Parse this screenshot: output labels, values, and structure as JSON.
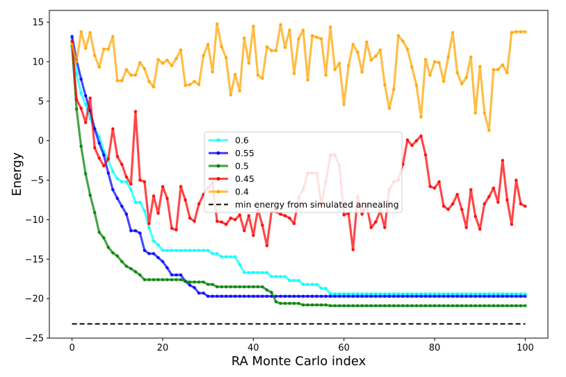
{
  "chart_data": {
    "type": "line",
    "title": "",
    "xlabel": "RA Monte Carlo index",
    "ylabel": "Energy",
    "xlim": [
      -5,
      105
    ],
    "ylim": [
      -25,
      16.5
    ],
    "xticks": [
      0,
      20,
      40,
      60,
      80,
      100
    ],
    "xtick_labels": [
      "0",
      "20",
      "40",
      "60",
      "80",
      "100"
    ],
    "yticks": [
      -25,
      -20,
      -15,
      -10,
      -5,
      0,
      5,
      10,
      15
    ],
    "ytick_labels": [
      "−25",
      "−20",
      "−15",
      "−10",
      "−5",
      "0",
      "5",
      "10",
      "15"
    ],
    "grid": false,
    "legend_position": "center",
    "series": [
      {
        "name": "0.6",
        "color": "#00ffff",
        "marker": "circle",
        "x": [
          0,
          1,
          2,
          3,
          4,
          5,
          6,
          7,
          8,
          9,
          10,
          11,
          12,
          13,
          14,
          15,
          16,
          17,
          18,
          19,
          20,
          21,
          22,
          23,
          24,
          25,
          26,
          27,
          28,
          29,
          30,
          31,
          32,
          33,
          34,
          35,
          36,
          37,
          38,
          39,
          40,
          41,
          42,
          43,
          44,
          45,
          46,
          47,
          48,
          49,
          50,
          51,
          52,
          53,
          54,
          55,
          56,
          57,
          58,
          59,
          60,
          61,
          62,
          63,
          64,
          65,
          66,
          67,
          68,
          69,
          70,
          71,
          72,
          73,
          74,
          75,
          76,
          77,
          78,
          79,
          80,
          81,
          82,
          83,
          84,
          85,
          86,
          87,
          88,
          89,
          90,
          91,
          92,
          93,
          94,
          95,
          96,
          97,
          98,
          99,
          100
        ],
        "values": [
          13.0,
          8.5,
          6.0,
          4.6,
          2.8,
          1.5,
          0.5,
          -1.3,
          -2.5,
          -3.9,
          -4.8,
          -5.2,
          -5.2,
          -6.2,
          -7.8,
          -7.8,
          -8.9,
          -11.0,
          -12.7,
          -13.2,
          -13.9,
          -13.9,
          -13.9,
          -13.9,
          -13.9,
          -13.9,
          -13.9,
          -13.9,
          -13.9,
          -13.9,
          -13.9,
          -14.3,
          -14.3,
          -14.7,
          -14.7,
          -14.7,
          -14.7,
          -15.7,
          -16.7,
          -16.7,
          -16.7,
          -16.7,
          -16.7,
          -16.7,
          -17.2,
          -17.2,
          -17.2,
          -17.2,
          -17.7,
          -17.7,
          -17.7,
          -18.2,
          -18.2,
          -18.2,
          -18.2,
          -18.7,
          -18.7,
          -19.4,
          -19.4,
          -19.4,
          -19.4,
          -19.4,
          -19.4,
          -19.4,
          -19.4,
          -19.4,
          -19.4,
          -19.4,
          -19.4,
          -19.4,
          -19.4,
          -19.4,
          -19.4,
          -19.4,
          -19.4,
          -19.4,
          -19.4,
          -19.4,
          -19.4,
          -19.4,
          -19.4,
          -19.4,
          -19.4,
          -19.4,
          -19.4,
          -19.4,
          -19.4,
          -19.4,
          -19.4,
          -19.4,
          -19.4,
          -19.4,
          -19.4,
          -19.4,
          -19.4,
          -19.4,
          -19.4,
          -19.4,
          -19.4,
          -19.4,
          -19.4
        ]
      },
      {
        "name": "0.55",
        "color": "#0000ff",
        "marker": "circle",
        "x": [
          0,
          1,
          2,
          3,
          4,
          5,
          6,
          7,
          8,
          9,
          10,
          11,
          12,
          13,
          14,
          15,
          16,
          17,
          18,
          19,
          20,
          21,
          22,
          23,
          24,
          25,
          26,
          27,
          28,
          29,
          30,
          31,
          32,
          33,
          34,
          35,
          36,
          37,
          38,
          39,
          40,
          41,
          42,
          43,
          44,
          45,
          46,
          47,
          48,
          49,
          50,
          51,
          52,
          53,
          54,
          55,
          56,
          57,
          58,
          59,
          60,
          61,
          62,
          63,
          64,
          65,
          66,
          67,
          68,
          69,
          70,
          71,
          72,
          73,
          74,
          75,
          76,
          77,
          78,
          79,
          80,
          81,
          82,
          83,
          84,
          85,
          86,
          87,
          88,
          89,
          90,
          91,
          92,
          93,
          94,
          95,
          96,
          97,
          98,
          99,
          100
        ],
        "values": [
          13.2,
          10.2,
          7.8,
          5.7,
          3.8,
          1.5,
          -0.3,
          -1.8,
          -4.1,
          -6.2,
          -7.3,
          -8.3,
          -9.3,
          -11.4,
          -11.4,
          -11.7,
          -13.9,
          -14.3,
          -14.3,
          -14.8,
          -15.3,
          -16.1,
          -17.0,
          -17.0,
          -17.0,
          -17.8,
          -18.3,
          -18.6,
          -19.3,
          -19.3,
          -19.7,
          -19.7,
          -19.7,
          -19.7,
          -19.7,
          -19.7,
          -19.7,
          -19.7,
          -19.7,
          -19.7,
          -19.7,
          -19.7,
          -19.7,
          -19.7,
          -19.7,
          -19.7,
          -19.7,
          -19.7,
          -19.7,
          -19.7,
          -19.7,
          -19.7,
          -19.7,
          -19.7,
          -19.7,
          -19.7,
          -19.7,
          -19.7,
          -19.7,
          -19.7,
          -19.7,
          -19.7,
          -19.7,
          -19.7,
          -19.7,
          -19.7,
          -19.7,
          -19.7,
          -19.7,
          -19.7,
          -19.7,
          -19.7,
          -19.7,
          -19.7,
          -19.7,
          -19.7,
          -19.7,
          -19.7,
          -19.7,
          -19.7,
          -19.7,
          -19.7,
          -19.7,
          -19.7,
          -19.7,
          -19.7,
          -19.7,
          -19.7,
          -19.7,
          -19.7,
          -19.7,
          -19.7,
          -19.7,
          -19.7,
          -19.7,
          -19.7,
          -19.7,
          -19.7,
          -19.7,
          -19.7,
          -19.7
        ]
      },
      {
        "name": "0.5",
        "color": "#008000",
        "marker": "circle",
        "x": [
          0,
          1,
          2,
          3,
          4,
          5,
          6,
          7,
          8,
          9,
          10,
          11,
          12,
          13,
          14,
          15,
          16,
          17,
          18,
          19,
          20,
          21,
          22,
          23,
          24,
          25,
          26,
          27,
          28,
          29,
          30,
          31,
          32,
          33,
          34,
          35,
          36,
          37,
          38,
          39,
          40,
          41,
          42,
          43,
          44,
          45,
          46,
          47,
          48,
          49,
          50,
          51,
          52,
          53,
          54,
          55,
          56,
          57,
          58,
          59,
          60,
          61,
          62,
          63,
          64,
          65,
          66,
          67,
          68,
          69,
          70,
          71,
          72,
          73,
          74,
          75,
          76,
          77,
          78,
          79,
          80,
          81,
          82,
          83,
          84,
          85,
          86,
          87,
          88,
          89,
          90,
          91,
          92,
          93,
          94,
          95,
          96,
          97,
          98,
          99,
          100
        ],
        "values": [
          12.0,
          4.0,
          -0.7,
          -4.2,
          -6.9,
          -9.1,
          -11.6,
          -12.3,
          -13.5,
          -14.2,
          -14.6,
          -15.3,
          -15.9,
          -16.2,
          -16.6,
          -17.0,
          -17.6,
          -17.6,
          -17.6,
          -17.6,
          -17.6,
          -17.6,
          -17.6,
          -17.6,
          -17.6,
          -17.8,
          -17.9,
          -17.9,
          -17.9,
          -17.9,
          -18.2,
          -18.2,
          -18.5,
          -18.5,
          -18.5,
          -18.5,
          -18.5,
          -18.5,
          -18.5,
          -18.5,
          -18.5,
          -18.5,
          -18.5,
          -18.9,
          -19.2,
          -20.4,
          -20.6,
          -20.6,
          -20.6,
          -20.6,
          -20.6,
          -20.8,
          -20.8,
          -20.8,
          -20.8,
          -20.8,
          -20.8,
          -20.9,
          -20.9,
          -20.9,
          -20.9,
          -20.9,
          -20.9,
          -20.9,
          -20.9,
          -20.9,
          -20.9,
          -20.9,
          -20.9,
          -20.9,
          -20.9,
          -20.9,
          -20.9,
          -20.9,
          -20.9,
          -20.9,
          -20.9,
          -20.9,
          -20.9,
          -20.9,
          -20.9,
          -20.9,
          -20.9,
          -20.9,
          -20.9,
          -20.9,
          -20.9,
          -20.9,
          -20.9,
          -20.9,
          -20.9,
          -20.9,
          -20.9,
          -20.9,
          -20.9,
          -20.9,
          -20.9,
          -20.9,
          -20.9,
          -20.9,
          -20.9
        ]
      },
      {
        "name": "0.45",
        "color": "#ff0000",
        "marker": "circle",
        "x": [
          0,
          1,
          2,
          3,
          4,
          5,
          6,
          7,
          8,
          9,
          10,
          11,
          12,
          13,
          14,
          15,
          16,
          17,
          18,
          19,
          20,
          21,
          22,
          23,
          24,
          25,
          26,
          27,
          28,
          29,
          30,
          31,
          32,
          33,
          34,
          35,
          36,
          37,
          38,
          39,
          40,
          41,
          42,
          43,
          44,
          45,
          46,
          47,
          48,
          49,
          50,
          51,
          52,
          53,
          54,
          55,
          56,
          57,
          58,
          59,
          60,
          61,
          62,
          63,
          64,
          65,
          66,
          67,
          68,
          69,
          70,
          71,
          72,
          73,
          74,
          75,
          76,
          77,
          78,
          79,
          80,
          81,
          82,
          83,
          84,
          85,
          86,
          87,
          88,
          89,
          90,
          91,
          92,
          93,
          94,
          95,
          96,
          97,
          98,
          99,
          100
        ],
        "values": [
          12.6,
          5.2,
          4.1,
          2.3,
          5.4,
          -0.9,
          -2.2,
          -3.2,
          -2.3,
          1.5,
          -2.0,
          -3.0,
          -4.6,
          -5.5,
          3.7,
          -5.0,
          -5.2,
          -10.5,
          -7.0,
          -9.2,
          -5.8,
          -7.3,
          -11.1,
          -11.3,
          -5.8,
          -7.5,
          -9.8,
          -10.2,
          -8.0,
          -6.8,
          -6.0,
          -5.3,
          -10.2,
          -10.3,
          -10.6,
          -9.8,
          -10.0,
          -9.4,
          -11.4,
          -9.5,
          -12.0,
          -8.7,
          -10.7,
          -13.3,
          -9.0,
          -9.0,
          -9.3,
          -9.5,
          -9.8,
          -10.5,
          -7.2,
          -6.2,
          -4.1,
          -4.1,
          -4.1,
          -8.1,
          -5.2,
          -1.8,
          -1.8,
          -3.2,
          -9.4,
          -9.2,
          -13.8,
          -7.1,
          -9.3,
          -8.1,
          -11.0,
          -10.3,
          -8.9,
          -11.0,
          -6.2,
          -5.2,
          -5.0,
          -3.0,
          0.1,
          -0.6,
          0.0,
          0.6,
          -1.8,
          -5.8,
          -6.0,
          -5.2,
          -8.3,
          -8.7,
          -8.0,
          -6.8,
          -8.7,
          -11.0,
          -6.2,
          -9.6,
          -11.2,
          -8.0,
          -7.1,
          -6.0,
          -7.8,
          -2.5,
          -7.5,
          -10.6,
          -5.0,
          -8.0,
          -8.3
        ]
      },
      {
        "name": "0.4",
        "color": "#ffa500",
        "marker": "circle",
        "x": [
          0,
          1,
          2,
          3,
          4,
          5,
          6,
          7,
          8,
          9,
          10,
          11,
          12,
          13,
          14,
          15,
          16,
          17,
          18,
          19,
          20,
          21,
          22,
          23,
          24,
          25,
          26,
          27,
          28,
          29,
          30,
          31,
          32,
          33,
          34,
          35,
          36,
          37,
          38,
          39,
          40,
          41,
          42,
          43,
          44,
          45,
          46,
          47,
          48,
          49,
          50,
          51,
          52,
          53,
          54,
          55,
          56,
          57,
          58,
          59,
          60,
          61,
          62,
          63,
          64,
          65,
          66,
          67,
          68,
          69,
          70,
          71,
          72,
          73,
          74,
          75,
          76,
          77,
          78,
          79,
          80,
          81,
          82,
          83,
          84,
          85,
          86,
          87,
          88,
          89,
          90,
          91,
          92,
          93,
          94,
          95,
          96,
          97,
          98,
          99,
          100
        ],
        "values": [
          12.2,
          10.0,
          13.8,
          11.7,
          13.7,
          10.8,
          9.3,
          11.6,
          11.6,
          13.2,
          7.6,
          7.6,
          9.0,
          8.3,
          8.3,
          9.9,
          9.1,
          7.5,
          6.8,
          10.3,
          9.8,
          10.2,
          9.5,
          10.4,
          11.5,
          7.0,
          7.1,
          7.5,
          7.1,
          10.8,
          12.2,
          8.7,
          14.8,
          11.9,
          10.5,
          5.8,
          8.4,
          6.3,
          13.0,
          9.8,
          14.5,
          8.3,
          7.9,
          11.9,
          11.4,
          11.4,
          14.7,
          11.8,
          14.0,
          8.5,
          12.9,
          14.0,
          7.7,
          13.3,
          13.1,
          12.9,
          8.3,
          14.4,
          9.0,
          9.8,
          4.6,
          9.5,
          12.2,
          11.2,
          8.7,
          12.5,
          10.2,
          10.7,
          11.5,
          7.1,
          4.1,
          6.5,
          13.3,
          12.6,
          11.6,
          9.3,
          7.0,
          3.0,
          10.3,
          8.3,
          10.0,
          9.9,
          7.5,
          10.6,
          13.7,
          8.6,
          7.2,
          8.0,
          10.6,
          3.5,
          9.4,
          3.5,
          1.3,
          9.0,
          9.0,
          9.6,
          8.6,
          13.7,
          13.8,
          13.8,
          13.8
        ]
      },
      {
        "name": "min energy from simulated annealing",
        "color": "#000000",
        "marker": "none",
        "linestyle": "dashed",
        "x": [
          0,
          100
        ],
        "values": [
          -23.2,
          -23.2
        ]
      }
    ]
  }
}
